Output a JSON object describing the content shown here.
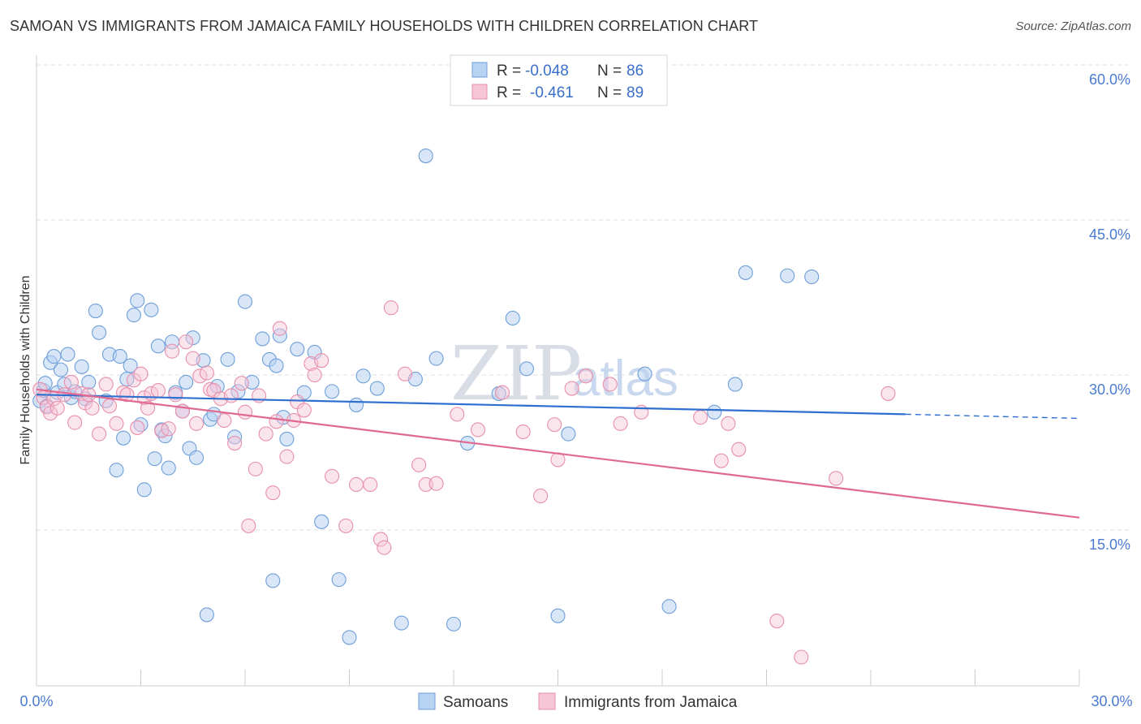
{
  "header": {
    "title": "SAMOAN VS IMMIGRANTS FROM JAMAICA FAMILY HOUSEHOLDS WITH CHILDREN CORRELATION CHART",
    "source": "Source: ZipAtlas.com"
  },
  "watermark": {
    "zip": "ZIP",
    "atlas": "atlas"
  },
  "colors": {
    "samoans_fill": "#b8d2f2",
    "samoans_stroke": "#6e9fd9",
    "samoans_line": "#2f6fcf",
    "jamaica_fill": "#f7c6d6",
    "jamaica_stroke": "#e88fac",
    "jamaica_line": "#e0698f",
    "tick_color": "#4a7bd0",
    "grid": "#dcdfe4"
  },
  "legend": {
    "samoans": {
      "r_label": "R =",
      "r_value": "-0.048",
      "n_label": "N =",
      "n_value": "86"
    },
    "jamaica": {
      "r_label": "R =",
      "r_value": "-0.461",
      "n_label": "N =",
      "n_value": "89"
    }
  },
  "chart_data": {
    "type": "scatter",
    "title": "SAMOAN VS IMMIGRANTS FROM JAMAICA FAMILY HOUSEHOLDS WITH CHILDREN CORRELATION CHART",
    "xlabel": "",
    "ylabel": "Family Households with Children",
    "xlim": [
      0,
      30
    ],
    "ylim": [
      0,
      60
    ],
    "x_tick_labels": [
      "0.0%",
      "30.0%"
    ],
    "y_tick_labels": [
      "15.0%",
      "30.0%",
      "45.0%",
      "60.0%"
    ],
    "y_ticks": [
      15,
      30,
      45,
      60
    ],
    "legend_position": "top-center",
    "series": [
      {
        "name": "Samoans",
        "r": -0.048,
        "n": 86,
        "trend": {
          "x": [
            0,
            25
          ],
          "y": [
            28.1,
            26.2
          ],
          "dashed_extension_to_x": 30,
          "dashed_end_y": 25.8
        },
        "points": [
          [
            0.1,
            27.5
          ],
          [
            0.2,
            28.5
          ],
          [
            0.25,
            29.2
          ],
          [
            0.3,
            27.0
          ],
          [
            0.4,
            31.2
          ],
          [
            0.5,
            31.8
          ],
          [
            0.6,
            28.3
          ],
          [
            0.7,
            30.5
          ],
          [
            0.8,
            29.1
          ],
          [
            0.9,
            32.0
          ],
          [
            1.0,
            27.8
          ],
          [
            1.1,
            28.4
          ],
          [
            1.3,
            30.8
          ],
          [
            1.4,
            27.7
          ],
          [
            1.5,
            29.3
          ],
          [
            1.7,
            36.2
          ],
          [
            1.8,
            34.1
          ],
          [
            2.0,
            27.5
          ],
          [
            2.1,
            32.0
          ],
          [
            2.3,
            20.8
          ],
          [
            2.4,
            31.8
          ],
          [
            2.5,
            23.9
          ],
          [
            2.6,
            29.6
          ],
          [
            2.7,
            30.9
          ],
          [
            2.8,
            35.8
          ],
          [
            2.9,
            37.2
          ],
          [
            3.0,
            25.2
          ],
          [
            3.1,
            18.9
          ],
          [
            3.3,
            36.3
          ],
          [
            3.4,
            21.9
          ],
          [
            3.5,
            32.8
          ],
          [
            3.6,
            24.7
          ],
          [
            3.7,
            24.1
          ],
          [
            3.8,
            21.0
          ],
          [
            3.9,
            33.2
          ],
          [
            4.0,
            28.3
          ],
          [
            4.2,
            26.5
          ],
          [
            4.3,
            29.3
          ],
          [
            4.4,
            22.9
          ],
          [
            4.5,
            33.6
          ],
          [
            4.6,
            22.0
          ],
          [
            4.8,
            31.4
          ],
          [
            4.9,
            6.8
          ],
          [
            5.0,
            25.7
          ],
          [
            5.1,
            26.2
          ],
          [
            5.2,
            28.9
          ],
          [
            5.5,
            31.5
          ],
          [
            5.7,
            24.0
          ],
          [
            5.8,
            28.4
          ],
          [
            6.0,
            37.1
          ],
          [
            6.2,
            29.3
          ],
          [
            6.5,
            33.5
          ],
          [
            6.7,
            31.5
          ],
          [
            6.8,
            10.1
          ],
          [
            6.9,
            30.9
          ],
          [
            7.0,
            33.8
          ],
          [
            7.1,
            25.9
          ],
          [
            7.2,
            23.8
          ],
          [
            7.5,
            32.5
          ],
          [
            7.7,
            28.3
          ],
          [
            8.0,
            32.2
          ],
          [
            8.2,
            15.8
          ],
          [
            8.5,
            28.4
          ],
          [
            8.7,
            10.2
          ],
          [
            9.0,
            4.6
          ],
          [
            9.2,
            27.1
          ],
          [
            9.4,
            29.9
          ],
          [
            9.8,
            28.7
          ],
          [
            10.5,
            6.0
          ],
          [
            10.9,
            29.6
          ],
          [
            11.2,
            51.2
          ],
          [
            11.5,
            31.6
          ],
          [
            12.0,
            5.9
          ],
          [
            12.4,
            23.4
          ],
          [
            13.3,
            28.2
          ],
          [
            13.7,
            35.5
          ],
          [
            14.1,
            30.6
          ],
          [
            15.0,
            6.7
          ],
          [
            15.3,
            24.3
          ],
          [
            17.5,
            30.1
          ],
          [
            18.2,
            7.6
          ],
          [
            19.5,
            26.4
          ],
          [
            20.1,
            29.1
          ],
          [
            20.4,
            39.9
          ],
          [
            21.6,
            39.6
          ],
          [
            22.3,
            39.5
          ]
        ]
      },
      {
        "name": "Immigrants from Jamaica",
        "r": -0.461,
        "n": 89,
        "trend": {
          "x": [
            0,
            30
          ],
          "y": [
            28.6,
            16.2
          ]
        },
        "points": [
          [
            0.1,
            28.6
          ],
          [
            0.2,
            27.8
          ],
          [
            0.3,
            26.9
          ],
          [
            0.4,
            26.3
          ],
          [
            0.5,
            27.7
          ],
          [
            0.6,
            26.8
          ],
          [
            0.8,
            28.1
          ],
          [
            1.0,
            29.3
          ],
          [
            1.1,
            25.4
          ],
          [
            1.3,
            28.2
          ],
          [
            1.4,
            27.3
          ],
          [
            1.5,
            28.1
          ],
          [
            1.6,
            26.8
          ],
          [
            1.8,
            24.3
          ],
          [
            2.0,
            29.1
          ],
          [
            2.1,
            27.0
          ],
          [
            2.3,
            25.3
          ],
          [
            2.5,
            28.3
          ],
          [
            2.6,
            28.1
          ],
          [
            2.8,
            29.5
          ],
          [
            2.9,
            24.9
          ],
          [
            3.0,
            30.1
          ],
          [
            3.1,
            27.8
          ],
          [
            3.2,
            26.8
          ],
          [
            3.3,
            28.2
          ],
          [
            3.5,
            28.5
          ],
          [
            3.6,
            24.6
          ],
          [
            3.8,
            24.8
          ],
          [
            3.9,
            32.3
          ],
          [
            4.0,
            28.1
          ],
          [
            4.2,
            26.5
          ],
          [
            4.3,
            33.2
          ],
          [
            4.5,
            31.6
          ],
          [
            4.6,
            25.3
          ],
          [
            4.7,
            29.9
          ],
          [
            4.9,
            30.2
          ],
          [
            5.0,
            28.6
          ],
          [
            5.1,
            28.5
          ],
          [
            5.3,
            27.7
          ],
          [
            5.4,
            25.6
          ],
          [
            5.6,
            28.0
          ],
          [
            5.7,
            23.4
          ],
          [
            5.9,
            29.2
          ],
          [
            6.0,
            26.4
          ],
          [
            6.1,
            15.4
          ],
          [
            6.3,
            20.9
          ],
          [
            6.4,
            28.0
          ],
          [
            6.6,
            24.3
          ],
          [
            6.8,
            18.6
          ],
          [
            6.9,
            25.5
          ],
          [
            7.0,
            34.5
          ],
          [
            7.2,
            22.1
          ],
          [
            7.4,
            25.6
          ],
          [
            7.5,
            27.4
          ],
          [
            7.7,
            26.6
          ],
          [
            7.9,
            31.1
          ],
          [
            8.0,
            30.0
          ],
          [
            8.2,
            31.4
          ],
          [
            8.5,
            20.2
          ],
          [
            8.9,
            15.4
          ],
          [
            9.2,
            19.4
          ],
          [
            9.6,
            19.4
          ],
          [
            9.9,
            14.1
          ],
          [
            10.0,
            13.3
          ],
          [
            10.2,
            36.5
          ],
          [
            10.6,
            30.1
          ],
          [
            11.0,
            21.3
          ],
          [
            11.2,
            19.4
          ],
          [
            11.5,
            19.5
          ],
          [
            12.1,
            26.2
          ],
          [
            12.7,
            24.7
          ],
          [
            13.4,
            28.3
          ],
          [
            14.0,
            24.5
          ],
          [
            14.5,
            18.3
          ],
          [
            14.9,
            25.2
          ],
          [
            15.0,
            21.8
          ],
          [
            15.4,
            28.7
          ],
          [
            15.8,
            29.9
          ],
          [
            16.5,
            29.1
          ],
          [
            16.8,
            25.3
          ],
          [
            17.4,
            26.4
          ],
          [
            19.1,
            25.9
          ],
          [
            19.7,
            21.7
          ],
          [
            19.9,
            25.3
          ],
          [
            20.2,
            22.8
          ],
          [
            21.3,
            6.2
          ],
          [
            22.0,
            2.7
          ],
          [
            23.0,
            20.0
          ],
          [
            24.5,
            28.2
          ]
        ]
      }
    ]
  },
  "bottom_legend": {
    "samoans_label": "Samoans",
    "jamaica_label": "Immigrants from Jamaica"
  }
}
